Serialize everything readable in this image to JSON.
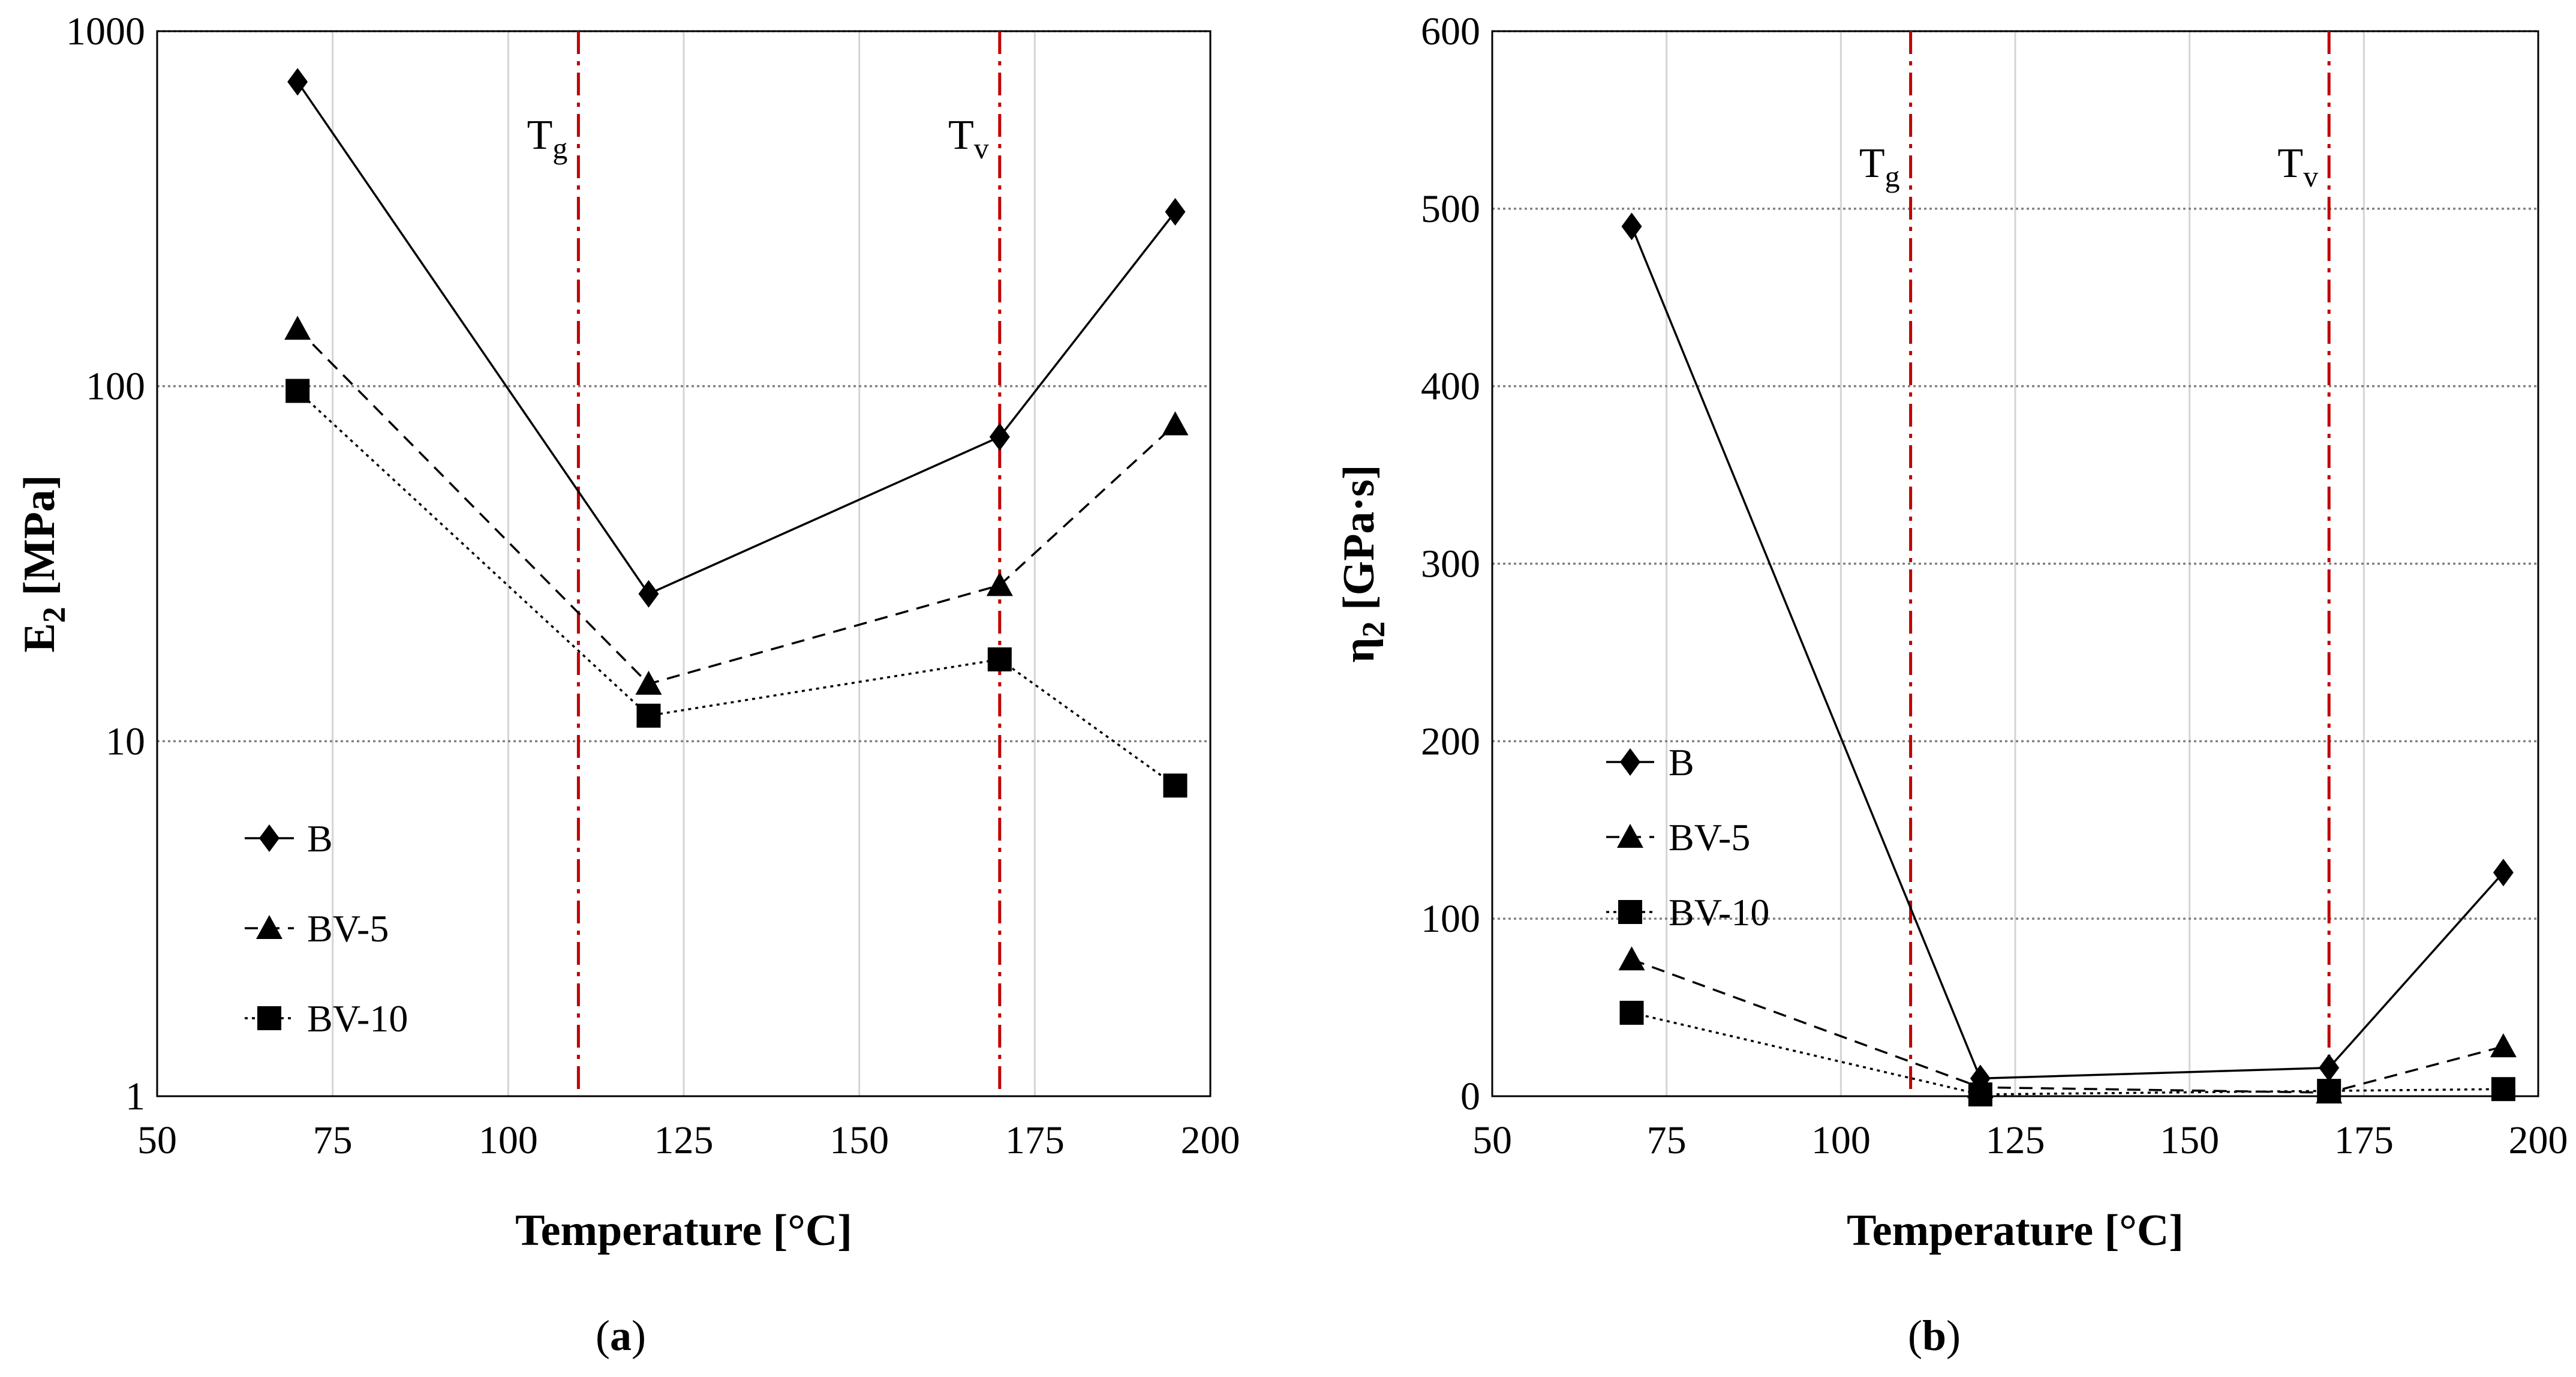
{
  "figure": {
    "colors": {
      "series_line": "#000000",
      "reference_line": "#c00000",
      "major_grid": "#808080",
      "minor_grid": "#d4d4d4"
    }
  },
  "chart_data": [
    {
      "id": "a",
      "type": "line",
      "panel_label": "a",
      "xlabel": "Temperature [°C]",
      "ylabel": {
        "base": "E",
        "sub": "2",
        "unit": " [MPa]"
      },
      "yscale": "log",
      "xlim": [
        50,
        200
      ],
      "xticks": [
        50,
        75,
        100,
        125,
        150,
        175,
        200
      ],
      "ylim": [
        1,
        1000
      ],
      "yticks": [
        1,
        10,
        100,
        1000
      ],
      "ytick_labels": [
        "1",
        "10",
        "100",
        "1000"
      ],
      "x": [
        70,
        120,
        170,
        195
      ],
      "series": [
        {
          "name": "B",
          "marker": "diamond",
          "dash": "solid",
          "values": [
            720,
            26,
            72,
            310
          ]
        },
        {
          "name": "BV-5",
          "marker": "triangle",
          "dash": "dashed",
          "values": [
            145,
            14.5,
            27.5,
            78
          ]
        },
        {
          "name": "BV-10",
          "marker": "square",
          "dash": "dotted",
          "values": [
            97,
            11.8,
            17,
            7.5
          ]
        }
      ],
      "reference_lines": [
        {
          "x": 110,
          "label": {
            "base": "T",
            "sub": "g"
          }
        },
        {
          "x": 170,
          "label": {
            "base": "T",
            "sub": "v"
          }
        }
      ],
      "legend_position": "lower-left"
    },
    {
      "id": "b",
      "type": "line",
      "panel_label": "b",
      "xlabel": "Temperature [°C]",
      "ylabel": {
        "base": "η",
        "sub": "2",
        "unit": " [GPa·s]"
      },
      "yscale": "linear",
      "xlim": [
        50,
        200
      ],
      "xticks": [
        50,
        75,
        100,
        125,
        150,
        175,
        200
      ],
      "ylim": [
        0,
        600
      ],
      "yticks": [
        0,
        100,
        200,
        300,
        400,
        500,
        600
      ],
      "ytick_labels": [
        "0",
        "100",
        "200",
        "300",
        "400",
        "500",
        "600"
      ],
      "x": [
        70,
        120,
        170,
        195
      ],
      "series": [
        {
          "name": "B",
          "marker": "diamond",
          "dash": "solid",
          "values": [
            490,
            10,
            16,
            126
          ]
        },
        {
          "name": "BV-5",
          "marker": "triangle",
          "dash": "dashed",
          "values": [
            77,
            5,
            2,
            28
          ]
        },
        {
          "name": "BV-10",
          "marker": "square",
          "dash": "dotted",
          "values": [
            47,
            1,
            3,
            4
          ]
        }
      ],
      "reference_lines": [
        {
          "x": 110,
          "label": {
            "base": "T",
            "sub": "g"
          }
        },
        {
          "x": 170,
          "label": {
            "base": "T",
            "sub": "v"
          }
        }
      ],
      "legend_position": "middle-left"
    }
  ]
}
